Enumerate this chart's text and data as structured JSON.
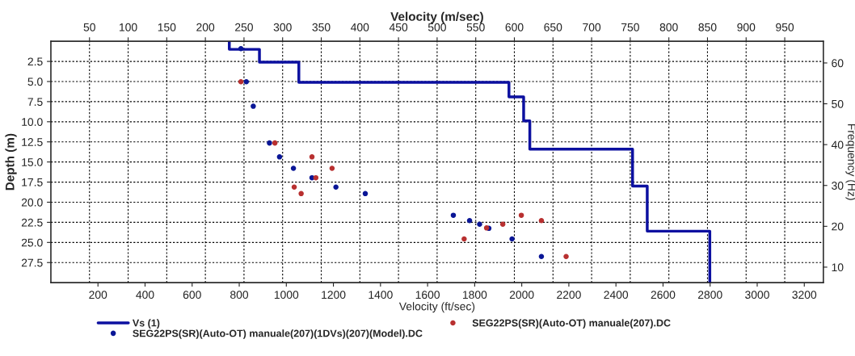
{
  "chart_data": {
    "type": "line",
    "xlabel": "Velocity (m/sec)",
    "x2label": "Velocity (ft/sec)",
    "ylabel": "Depth (m)",
    "y2label": "Frequency (Hz)",
    "x2lim": [
      0,
      3281
    ],
    "x2ticks": [
      200,
      400,
      600,
      800,
      1000,
      1200,
      1400,
      1600,
      1800,
      2000,
      2200,
      2400,
      2600,
      2800,
      3000,
      3200
    ],
    "xlim": [
      0,
      1000
    ],
    "xticks": [
      50,
      100,
      150,
      200,
      250,
      300,
      350,
      400,
      450,
      500,
      550,
      600,
      650,
      700,
      750,
      800,
      850,
      900,
      950
    ],
    "ylim": [
      30,
      0
    ],
    "yticks": [
      2.5,
      {
        "value": 5,
        "label": "5.0"
      },
      7.5,
      {
        "value": 10,
        "label": "10.0"
      },
      12.5,
      {
        "value": 15,
        "label": "15.0"
      },
      17.5,
      {
        "value": 20,
        "label": "20.0"
      },
      22.5,
      {
        "value": 25,
        "label": "25.0"
      },
      27.5
    ],
    "y2lim": [
      6.2,
      65.3
    ],
    "y2ticks": [
      10,
      20,
      30,
      40,
      50,
      60
    ],
    "grid": true,
    "legend": "bottom",
    "series": [
      {
        "name": "Vs (1)",
        "color": "#0c10a0",
        "marker": "none",
        "line_style": "solid",
        "x": [
          231,
          231,
          270,
          270,
          321,
          321,
          593,
          593,
          612,
          612,
          620,
          620,
          753,
          753,
          772,
          772,
          853,
          853
        ],
        "values": [
          0,
          1.0,
          1.0,
          2.6,
          2.6,
          5.1,
          5.1,
          6.9,
          6.9,
          9.9,
          9.9,
          13.4,
          13.4,
          18.0,
          18.0,
          23.6,
          23.6,
          30
        ]
      },
      {
        "name": "SEG22PS(SR)(Auto-OT) manuale(207)(1DVs)(207)(Model).DC",
        "type": "scatter",
        "axis": "y2",
        "color": "#0a1696",
        "marker": "circle",
        "x": [
          246,
          253,
          262,
          283,
          296,
          314,
          338,
          369,
          407,
          521,
          542,
          555,
          567,
          597,
          635
        ],
        "values": [
          63.5,
          55.4,
          49.4,
          40.4,
          37.0,
          34.2,
          31.9,
          29.6,
          28.0,
          22.7,
          21.4,
          20.5,
          19.5,
          16.9,
          12.6
        ]
      },
      {
        "name": "SEG22PS(SR)(Auto-OT) manuale(207).DC",
        "type": "scatter",
        "axis": "y2",
        "color": "#b83030",
        "marker": "circle",
        "x": [
          246,
          290,
          338,
          364,
          343,
          315,
          324,
          564,
          585,
          609,
          635,
          535,
          667
        ],
        "values": [
          55.4,
          40.4,
          37.0,
          34.2,
          31.9,
          29.6,
          28.0,
          19.6,
          20.5,
          22.7,
          21.4,
          16.9,
          12.6
        ]
      }
    ]
  }
}
